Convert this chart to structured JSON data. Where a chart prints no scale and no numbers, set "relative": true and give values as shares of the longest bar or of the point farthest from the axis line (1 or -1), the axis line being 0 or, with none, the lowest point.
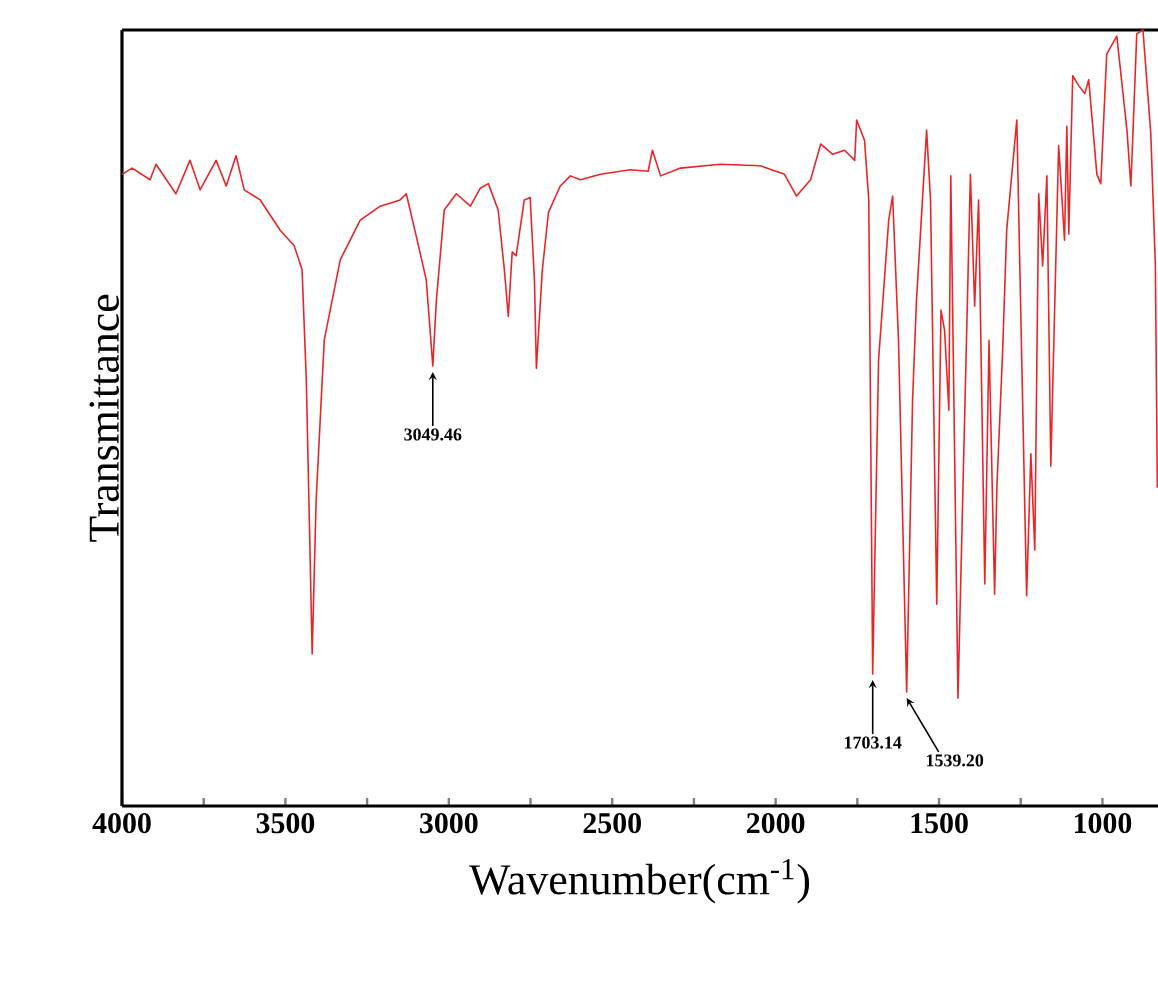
{
  "chart_data": {
    "type": "line",
    "relative": true,
    "xlabel": "Wavenumber(cm$^{-1}$)",
    "ylabel": "Transmittance",
    "xlim": [
      4000,
      830
    ],
    "xticks": [
      4000,
      {
        "value": 3750,
        "label": null
      },
      3500,
      {
        "value": 3250,
        "label": null
      },
      3000,
      {
        "value": 2750,
        "label": null
      },
      2500,
      {
        "value": 2250,
        "label": null
      },
      2000,
      {
        "value": 1750,
        "label": null
      },
      1500,
      {
        "value": 1250,
        "label": null
      },
      1000
    ],
    "annotations": [
      {
        "text": "3049.46",
        "x": 3049,
        "y": 0.567
      },
      {
        "text": "1703.14",
        "x": 1703,
        "y": 0.17
      },
      {
        "text": "1539.20",
        "x": 1599,
        "y": 0.147
      }
    ],
    "series": [
      {
        "color": "#e8262a",
        "x": [
          4000,
          3969,
          3914,
          3896,
          3835,
          3792,
          3761,
          3712,
          3681,
          3651,
          3626,
          3577,
          3516,
          3473,
          3449,
          3436,
          3418,
          3406,
          3381,
          3332,
          3271,
          3210,
          3149,
          3130,
          3100,
          3069,
          3049,
          3038,
          3014,
          2977,
          2934,
          2904,
          2879,
          2849,
          2830,
          2818,
          2806,
          2794,
          2769,
          2751,
          2738,
          2732,
          2714,
          2695,
          2659,
          2628,
          2597,
          2536,
          2444,
          2390,
          2377,
          2352,
          2291,
          2169,
          2046,
          1973,
          1936,
          1893,
          1862,
          1826,
          1789,
          1758,
          1752,
          1728,
          1715,
          1703,
          1685,
          1673,
          1654,
          1642,
          1624,
          1599,
          1581,
          1569,
          1538,
          1526,
          1507,
          1494,
          1483,
          1470,
          1464,
          1442,
          1404,
          1391,
          1379,
          1360,
          1347,
          1330,
          1323,
          1305,
          1293,
          1262,
          1232,
          1219,
          1207,
          1195,
          1183,
          1170,
          1158,
          1134,
          1116,
          1109,
          1103,
          1091,
          1072,
          1054,
          1042,
          1017,
          1005,
          987,
          956,
          925,
          913,
          895,
          876,
          852,
          838,
          832
        ],
        "values": [
          0.814,
          0.822,
          0.807,
          0.827,
          0.789,
          0.832,
          0.794,
          0.832,
          0.799,
          0.838,
          0.794,
          0.781,
          0.742,
          0.722,
          0.691,
          0.549,
          0.196,
          0.394,
          0.601,
          0.704,
          0.755,
          0.773,
          0.781,
          0.789,
          0.735,
          0.678,
          0.567,
          0.652,
          0.768,
          0.789,
          0.773,
          0.796,
          0.802,
          0.768,
          0.691,
          0.631,
          0.714,
          0.709,
          0.781,
          0.784,
          0.678,
          0.564,
          0.69,
          0.765,
          0.799,
          0.812,
          0.807,
          0.814,
          0.82,
          0.818,
          0.845,
          0.812,
          0.822,
          0.827,
          0.825,
          0.814,
          0.786,
          0.807,
          0.853,
          0.84,
          0.845,
          0.832,
          0.884,
          0.858,
          0.781,
          0.17,
          0.575,
          0.644,
          0.755,
          0.786,
          0.6,
          0.147,
          0.523,
          0.652,
          0.871,
          0.781,
          0.26,
          0.639,
          0.613,
          0.51,
          0.812,
          0.139,
          0.814,
          0.644,
          0.781,
          0.286,
          0.6,
          0.273,
          0.41,
          0.59,
          0.742,
          0.884,
          0.271,
          0.454,
          0.33,
          0.789,
          0.696,
          0.812,
          0.438,
          0.851,
          0.729,
          0.876,
          0.737,
          0.941,
          0.928,
          0.918,
          0.936,
          0.814,
          0.802,
          0.969,
          0.992,
          0.871,
          0.799,
          0.995,
          1.0,
          0.866,
          0.696,
          0.41
        ]
      }
    ]
  }
}
